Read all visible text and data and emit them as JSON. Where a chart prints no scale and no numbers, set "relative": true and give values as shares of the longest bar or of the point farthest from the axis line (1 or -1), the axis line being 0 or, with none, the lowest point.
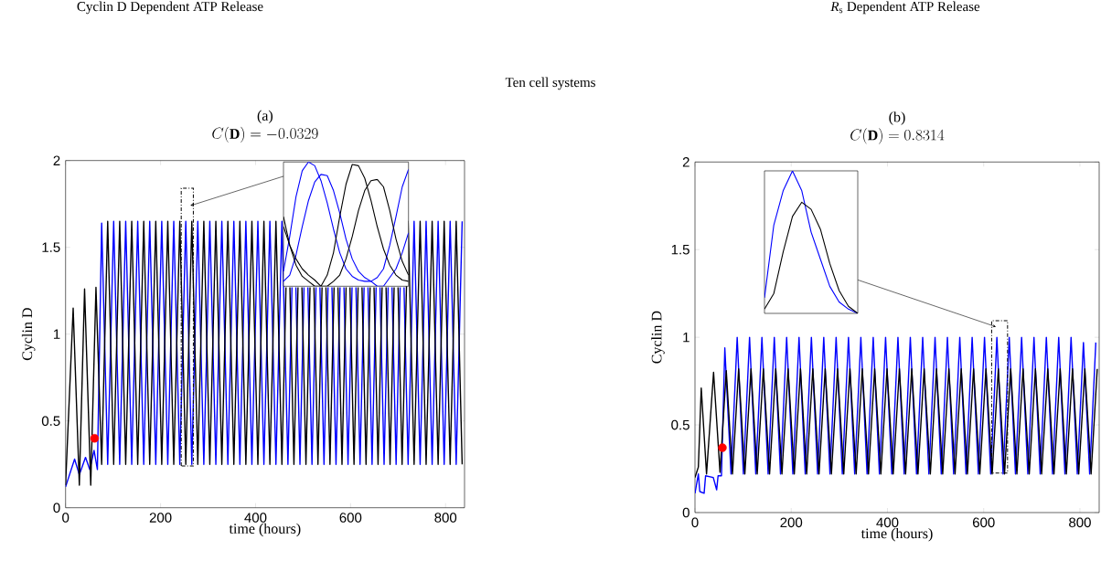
{
  "chart_data": [
    {
      "type": "line",
      "title": "(a)",
      "subtitle": "C(\\mathbf{D}) = -0.0329",
      "xlabel": "time (hours)",
      "ylabel": "Cyclin D",
      "annotations": [
        "Cyclin D Dependent ATP Release",
        "Ten cell systems"
      ],
      "xlim": [
        0,
        840
      ],
      "ylim": [
        0,
        2
      ],
      "xticks": [
        0,
        200,
        400,
        600,
        800
      ],
      "yticks": [
        0,
        0.5,
        1,
        1.5,
        2
      ],
      "series": [
        {
          "color": "#0000ff",
          "x": [
            0,
            19,
            29,
            42,
            51,
            60,
            67,
            76,
            88.7,
            101.3,
            114,
            126.6,
            139.3,
            151.9,
            164.6,
            177.2,
            189.9,
            202.5,
            215.2,
            227.8,
            240.5,
            253.1,
            265.8,
            278.4,
            291.1,
            303.7,
            316.4,
            329,
            341.7,
            354.3,
            367,
            379.6,
            392.3,
            404.9,
            417.6,
            430.2,
            442.9,
            455.5,
            468.2,
            476.7,
            480.8,
            484.9,
            493.5,
            502,
            506.1,
            510.2,
            518.8,
            527.3,
            531.4,
            535.5,
            544.1,
            552.6,
            556.7,
            560.8,
            569.4,
            577.9,
            582,
            586.1,
            594.7,
            603.2,
            607.3,
            611.4,
            620,
            628.5,
            632.6,
            636.7,
            645.3,
            653.8,
            657.9,
            662,
            670.6,
            679.1,
            683.2,
            687.3,
            695.9,
            704.4,
            708.5,
            712.6,
            721.2,
            733.8,
            746.5,
            759.1,
            771.8,
            784.4,
            797.1,
            809.7,
            822.4,
            835
          ],
          "values": [
            0.12,
            0.28,
            0.19,
            0.29,
            0.22,
            0.33,
            0.22,
            1.64,
            0.25,
            1.65,
            0.25,
            1.65,
            0.25,
            1.65,
            0.25,
            1.65,
            0.25,
            1.65,
            0.25,
            1.65,
            0.25,
            1.65,
            0.25,
            1.65,
            0.25,
            1.65,
            0.25,
            1.65,
            0.25,
            1.65,
            0.25,
            1.65,
            0.25,
            1.65,
            0.25,
            1.65,
            0.25,
            1.65,
            0.25,
            1.27,
            null,
            1.27,
            0.25,
            1.27,
            null,
            1.27,
            0.25,
            1.27,
            null,
            1.27,
            0.25,
            1.27,
            null,
            1.27,
            0.25,
            1.27,
            null,
            1.27,
            0.25,
            1.27,
            null,
            1.27,
            0.25,
            1.27,
            null,
            1.27,
            0.25,
            1.27,
            null,
            1.27,
            0.25,
            1.27,
            null,
            1.27,
            0.25,
            1.27,
            null,
            1.27,
            0.25,
            1.65,
            0.25,
            1.65,
            0.25,
            1.65,
            0.25,
            1.65,
            0.25,
            1.65
          ]
        },
        {
          "color": "#000000",
          "x": [
            0,
            16,
            29,
            40,
            53,
            64,
            76,
            88.7,
            101.3,
            114,
            126.6,
            139.3,
            151.9,
            164.6,
            177.2,
            189.9,
            202.5,
            215.2,
            227.8,
            240.5,
            253.1,
            265.8,
            278.4,
            291.1,
            303.7,
            316.4,
            329,
            341.7,
            354.3,
            367,
            379.6,
            392.3,
            404.9,
            417.6,
            430.2,
            442.9,
            455.5,
            464.1,
            468.2,
            472.3,
            480.8,
            489.4,
            493.5,
            497.6,
            506.1,
            514.7,
            518.8,
            522.9,
            531.4,
            540,
            544.1,
            548.2,
            556.7,
            565.3,
            569.4,
            573.5,
            582,
            590.6,
            594.7,
            598.8,
            607.3,
            615.9,
            620,
            624.1,
            632.6,
            641.2,
            645.3,
            649.4,
            657.9,
            666.5,
            670.6,
            674.7,
            683.2,
            691.8,
            695.9,
            700,
            708.5,
            721.2,
            733.8,
            746.5,
            759.1,
            771.8,
            784.4,
            797.1,
            809.7,
            822.4,
            835
          ],
          "values": [
            0.13,
            1.15,
            0.13,
            1.26,
            0.13,
            1.27,
            0.25,
            1.65,
            0.25,
            1.65,
            0.25,
            1.65,
            0.25,
            1.65,
            0.25,
            1.65,
            0.25,
            1.65,
            0.25,
            1.65,
            0.25,
            1.65,
            0.25,
            1.65,
            0.25,
            1.65,
            0.25,
            1.65,
            0.25,
            1.65,
            0.25,
            1.65,
            0.25,
            1.65,
            0.25,
            1.65,
            0.25,
            1.27,
            null,
            1.27,
            0.25,
            1.27,
            null,
            1.27,
            0.25,
            1.27,
            null,
            1.27,
            0.25,
            1.27,
            null,
            1.27,
            0.25,
            1.27,
            null,
            1.27,
            0.25,
            1.27,
            null,
            1.27,
            0.25,
            1.27,
            null,
            1.27,
            0.25,
            1.27,
            null,
            1.27,
            0.25,
            1.27,
            null,
            1.27,
            0.25,
            1.27,
            null,
            1.27,
            0.25,
            1.65,
            0.25,
            1.65,
            0.25,
            1.65,
            0.25,
            1.65,
            0.25,
            1.65,
            0.25
          ]
        },
        {
          "color": "#ff0000",
          "type": "scatter",
          "marker": "circle",
          "x": [
            61
          ],
          "values": [
            0.4
          ]
        }
      ]
    },
    {
      "type": "line",
      "relative": true,
      "categories": [
        null,
        null,
        null,
        null,
        null,
        null,
        null,
        null,
        null,
        null,
        null,
        null,
        null,
        null,
        null,
        null,
        null,
        null,
        null,
        null,
        null
      ],
      "series": [
        {
          "color": "#0000ff",
          "values": [
            0.12,
            0.4,
            0.72,
            0.93,
            1,
            0.97,
            0.85,
            0.67,
            0.46,
            0.27,
            0.14,
            0.08,
            0.05,
            0.04,
            0.04,
            0.07,
            0.14,
            0.33,
            0.56,
            0.8,
            0.94
          ]
        },
        {
          "color": "#0000ff",
          "values": [
            0.04,
            0.09,
            0.25,
            0.48,
            0.69,
            0.84,
            0.9,
            0.89,
            0.77,
            0.59,
            0.38,
            0.22,
            0.12,
            0.07,
            0.04,
            0,
            0,
            0.07,
            0.14,
            0.27,
            0.43
          ]
        },
        {
          "color": "#000000",
          "values": [
            0.56,
            0.33,
            0.17,
            0.08,
            0.04,
            0,
            0,
            0.09,
            0.27,
            0.56,
            0.82,
            0.98,
            0.97,
            0.87,
            0.69,
            0.48,
            0.3,
            0.17,
            0.09,
            0.05,
            0.04
          ]
        },
        {
          "color": "#000000",
          "values": [
            0.48,
            0.33,
            0.22,
            0.14,
            0.09,
            0.05,
            0,
            0,
            0.04,
            0.09,
            0.22,
            0.4,
            0.61,
            0.77,
            0.85,
            0.86,
            0.8,
            0.61,
            0.38,
            0.2,
            0.09
          ]
        }
      ]
    },
    {
      "type": "line",
      "title": "(b)",
      "subtitle": "C(\\mathbf{D}) = 0.8314",
      "xlabel": "time (hours)",
      "ylabel": "Cyclin D",
      "annotations": [
        "*R*$_{s}$ Dependent ATP Release"
      ],
      "xlim": [
        0,
        840
      ],
      "ylim": [
        0,
        2
      ],
      "xticks": [
        0,
        200,
        400,
        600,
        800
      ],
      "yticks": [
        0,
        0.5,
        1,
        1.5,
        2
      ],
      "series": [
        {
          "color": "#0000ff",
          "x": [
            0,
            7,
            10,
            19,
            22,
            38,
            45,
            48,
            55,
            62,
            74.9,
            87.7,
            100.6,
            113.4,
            126.3,
            139.1,
            152,
            164.8,
            177.7,
            190.5,
            203.4,
            216.2,
            229.1,
            241.9,
            254.8,
            267.6,
            280.5,
            293.3,
            306.2,
            319,
            331.9,
            344.7,
            357.6,
            370.4,
            383.3,
            396.1,
            409,
            421.8,
            434.7,
            447.5,
            460.4,
            473.2,
            486.1,
            498.9,
            511.8,
            524.6,
            537.5,
            550.3,
            563.2,
            576,
            588.9,
            601.7,
            614.6,
            627.4,
            640.3,
            653.1,
            666,
            678.8,
            691.7,
            704.5,
            717.4,
            730.2,
            743.1,
            755.9,
            768.8,
            781.6,
            794.5,
            807.3,
            820.2,
            833
          ],
          "values": [
            0.11,
            0.22,
            0.12,
            0.11,
            0.21,
            0.2,
            0.13,
            0.21,
            0.21,
            0.94,
            0.22,
            1,
            0.22,
            1,
            0.22,
            1,
            0.22,
            1,
            0.22,
            1,
            0.22,
            1,
            0.22,
            1,
            0.22,
            1,
            0.22,
            1,
            0.22,
            1,
            0.22,
            1,
            0.22,
            1,
            0.22,
            1,
            0.22,
            1,
            0.22,
            1,
            0.22,
            1,
            0.22,
            1,
            0.22,
            1,
            0.22,
            1,
            0.22,
            1,
            0.22,
            1,
            0.22,
            1,
            0.22,
            1,
            0.22,
            1,
            0.22,
            1,
            0.22,
            1,
            0.22,
            1,
            0.22,
            1,
            0.22,
            0.97,
            0.22,
            0.97
          ]
        },
        {
          "color": "#000000",
          "x": [
            0,
            7,
            13,
            24,
            38.6,
            52,
            65,
            77.9,
            90.7,
            103.6,
            116.4,
            129.3,
            142.1,
            155,
            167.8,
            180.7,
            193.5,
            206.4,
            219.2,
            232.1,
            244.9,
            257.8,
            270.6,
            283.5,
            296.3,
            309.2,
            322,
            334.9,
            347.7,
            360.6,
            373.4,
            386.3,
            399.1,
            412,
            424.8,
            437.7,
            450.5,
            463.4,
            476.2,
            489.1,
            501.9,
            514.8,
            527.6,
            540.5,
            553.3,
            566.2,
            579,
            591.9,
            604.7,
            617.6,
            630.4,
            643.3,
            656.1,
            669,
            681.8,
            694.7,
            707.5,
            720.4,
            733.2,
            746.1,
            758.9,
            771.8,
            784.6,
            797.5,
            810.3,
            823.2,
            836
          ],
          "values": [
            0.2,
            0.26,
            0.71,
            0.22,
            0.8,
            0.23,
            0.81,
            0.22,
            0.82,
            0.22,
            0.82,
            0.22,
            0.82,
            0.22,
            0.82,
            0.22,
            0.82,
            0.22,
            0.82,
            0.22,
            0.82,
            0.22,
            0.82,
            0.22,
            0.82,
            0.22,
            0.82,
            0.22,
            0.82,
            0.22,
            0.82,
            0.22,
            0.82,
            0.22,
            0.82,
            0.22,
            0.82,
            0.22,
            0.82,
            0.22,
            0.82,
            0.22,
            0.82,
            0.22,
            0.82,
            0.22,
            0.82,
            0.22,
            0.82,
            0.22,
            0.82,
            0.22,
            0.82,
            0.22,
            0.82,
            0.22,
            0.82,
            0.22,
            0.82,
            0.22,
            0.82,
            0.22,
            0.82,
            0.22,
            0.82,
            0.22,
            0.82
          ]
        },
        {
          "color": "#ff0000",
          "type": "scatter",
          "marker": "circle",
          "x": [
            57
          ],
          "values": [
            0.37
          ]
        }
      ]
    },
    {
      "type": "line",
      "relative": true,
      "categories": [
        null,
        null,
        null,
        null,
        null,
        null,
        null,
        null,
        null,
        null,
        null
      ],
      "series": [
        {
          "color": "#0000ff",
          "values": [
            0.11,
            0.62,
            0.86,
            1,
            0.86,
            0.57,
            0.38,
            0.19,
            0.08,
            0.03,
            0
          ]
        },
        {
          "color": "#000000",
          "values": [
            0.03,
            0.14,
            0.43,
            0.68,
            0.78,
            0.73,
            0.59,
            0.35,
            0.16,
            0.05,
            0
          ]
        }
      ]
    }
  ]
}
